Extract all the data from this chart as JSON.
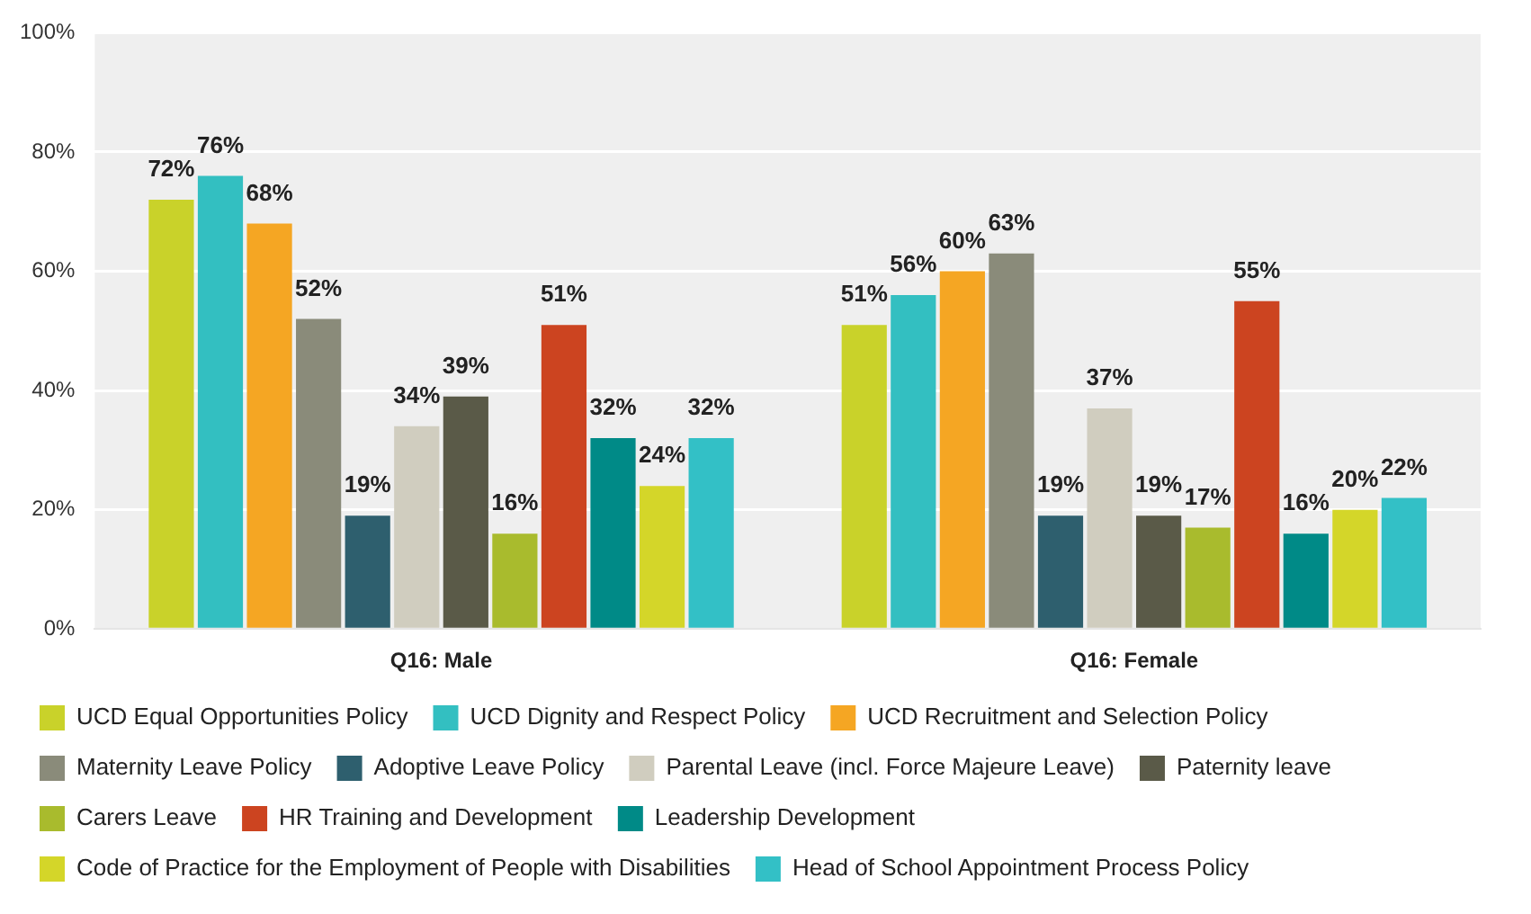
{
  "chart_data": {
    "type": "bar",
    "categories": [
      "Q16: Male",
      "Q16: Female"
    ],
    "ylim": [
      0,
      100
    ],
    "yticks": [
      {
        "value": 0,
        "label": "0%"
      },
      {
        "value": 20,
        "label": "20%"
      },
      {
        "value": 40,
        "label": "40%"
      },
      {
        "value": 60,
        "label": "60%"
      },
      {
        "value": 80,
        "label": "80%"
      },
      {
        "value": 100,
        "label": "100%"
      }
    ],
    "grid": "y",
    "legend": "bottom",
    "series": [
      {
        "name": "UCD Equal Opportunities Policy",
        "color": "#c9d22a",
        "values": [
          72,
          51
        ],
        "value_labels": [
          "72%",
          "51%"
        ]
      },
      {
        "name": "UCD Dignity and Respect Policy",
        "color": "#33bfc1",
        "values": [
          76,
          56
        ],
        "value_labels": [
          "76%",
          "56%"
        ]
      },
      {
        "name": "UCD Recruitment and Selection Policy",
        "color": "#f5a623",
        "values": [
          68,
          60
        ],
        "value_labels": [
          "68%",
          "60%"
        ]
      },
      {
        "name": "Maternity Leave Policy",
        "color": "#8a8b7a",
        "values": [
          52,
          63
        ],
        "value_labels": [
          "52%",
          "63%"
        ]
      },
      {
        "name": "Adoptive Leave Policy",
        "color": "#2e5f6e",
        "values": [
          19,
          19
        ],
        "value_labels": [
          "19%",
          "19%"
        ]
      },
      {
        "name": "Parental Leave (incl. Force Majeure Leave)",
        "color": "#d0cdbf",
        "values": [
          34,
          37
        ],
        "value_labels": [
          "34%",
          "37%"
        ]
      },
      {
        "name": "Paternity leave",
        "color": "#5a5a48",
        "values": [
          39,
          19
        ],
        "value_labels": [
          "39%",
          "19%"
        ]
      },
      {
        "name": "Carers Leave",
        "color": "#a9bb2d",
        "values": [
          16,
          17
        ],
        "value_labels": [
          "16%",
          "17%"
        ]
      },
      {
        "name": "HR Training and Development",
        "color": "#cc4420",
        "values": [
          51,
          55
        ],
        "value_labels": [
          "51%",
          "55%"
        ]
      },
      {
        "name": "Leadership Development",
        "color": "#008a87",
        "values": [
          32,
          16
        ],
        "value_labels": [
          "32%",
          "16%"
        ]
      },
      {
        "name": "Code of Practice for the Employment of People with Disabilities",
        "color": "#d4d629",
        "values": [
          24,
          20
        ],
        "value_labels": [
          "24%",
          "20%"
        ]
      },
      {
        "name": "Head of School Appointment Process Policy",
        "color": "#33c0c6",
        "values": [
          32,
          22
        ],
        "value_labels": [
          "32%",
          "22%"
        ]
      }
    ]
  }
}
